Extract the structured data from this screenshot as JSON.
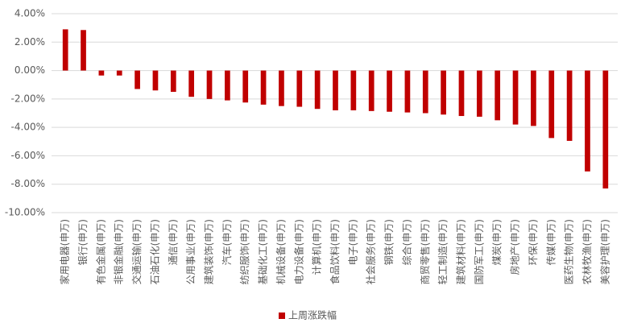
{
  "chart_data": {
    "type": "bar",
    "categories": [
      "家用电器(申万)",
      "银行(申万)",
      "有色金属(申万)",
      "非银金融(申万)",
      "交通运输(申万)",
      "石油石化(申万)",
      "通信(申万)",
      "公用事业(申万)",
      "建筑装饰(申万)",
      "汽车(申万)",
      "纺织服饰(申万)",
      "基础化工(申万)",
      "机械设备(申万)",
      "电力设备(申万)",
      "计算机(申万)",
      "食品饮料(申万)",
      "电子(申万)",
      "社会服务(申万)",
      "钢铁(申万)",
      "综合(申万)",
      "商贸零售(申万)",
      "轻工制造(申万)",
      "建筑材料(申万)",
      "国防军工(申万)",
      "煤炭(申万)",
      "房地产(申万)",
      "环保(申万)",
      "传媒(申万)",
      "医药生物(申万)",
      "农林牧渔(申万)",
      "美容护理(申万)"
    ],
    "series": [
      {
        "name": "上周涨跌幅",
        "color": "#c00000",
        "values": [
          2.9,
          2.85,
          -0.35,
          -0.35,
          -1.3,
          -1.4,
          -1.5,
          -1.85,
          -2.0,
          -2.1,
          -2.25,
          -2.4,
          -2.5,
          -2.55,
          -2.7,
          -2.8,
          -2.8,
          -2.85,
          -2.9,
          -2.95,
          -3.0,
          -3.1,
          -3.2,
          -3.25,
          -3.5,
          -3.8,
          -3.9,
          -4.75,
          -4.95,
          -7.1,
          -8.3
        ]
      }
    ],
    "ylim": [
      -10,
      4
    ],
    "yticks": [
      {
        "value": 4,
        "label": "4.00%"
      },
      {
        "value": 2,
        "label": "2.00%"
      },
      {
        "value": 0,
        "label": "0.00%"
      },
      {
        "value": -2,
        "label": "-2.00%"
      },
      {
        "value": -4,
        "label": "-4.00%"
      },
      {
        "value": -6,
        "label": "-6.00%"
      },
      {
        "value": -8,
        "label": "-8.00%"
      },
      {
        "value": -10,
        "label": "-10.00%"
      }
    ],
    "grid": true,
    "legend": "bottom"
  }
}
